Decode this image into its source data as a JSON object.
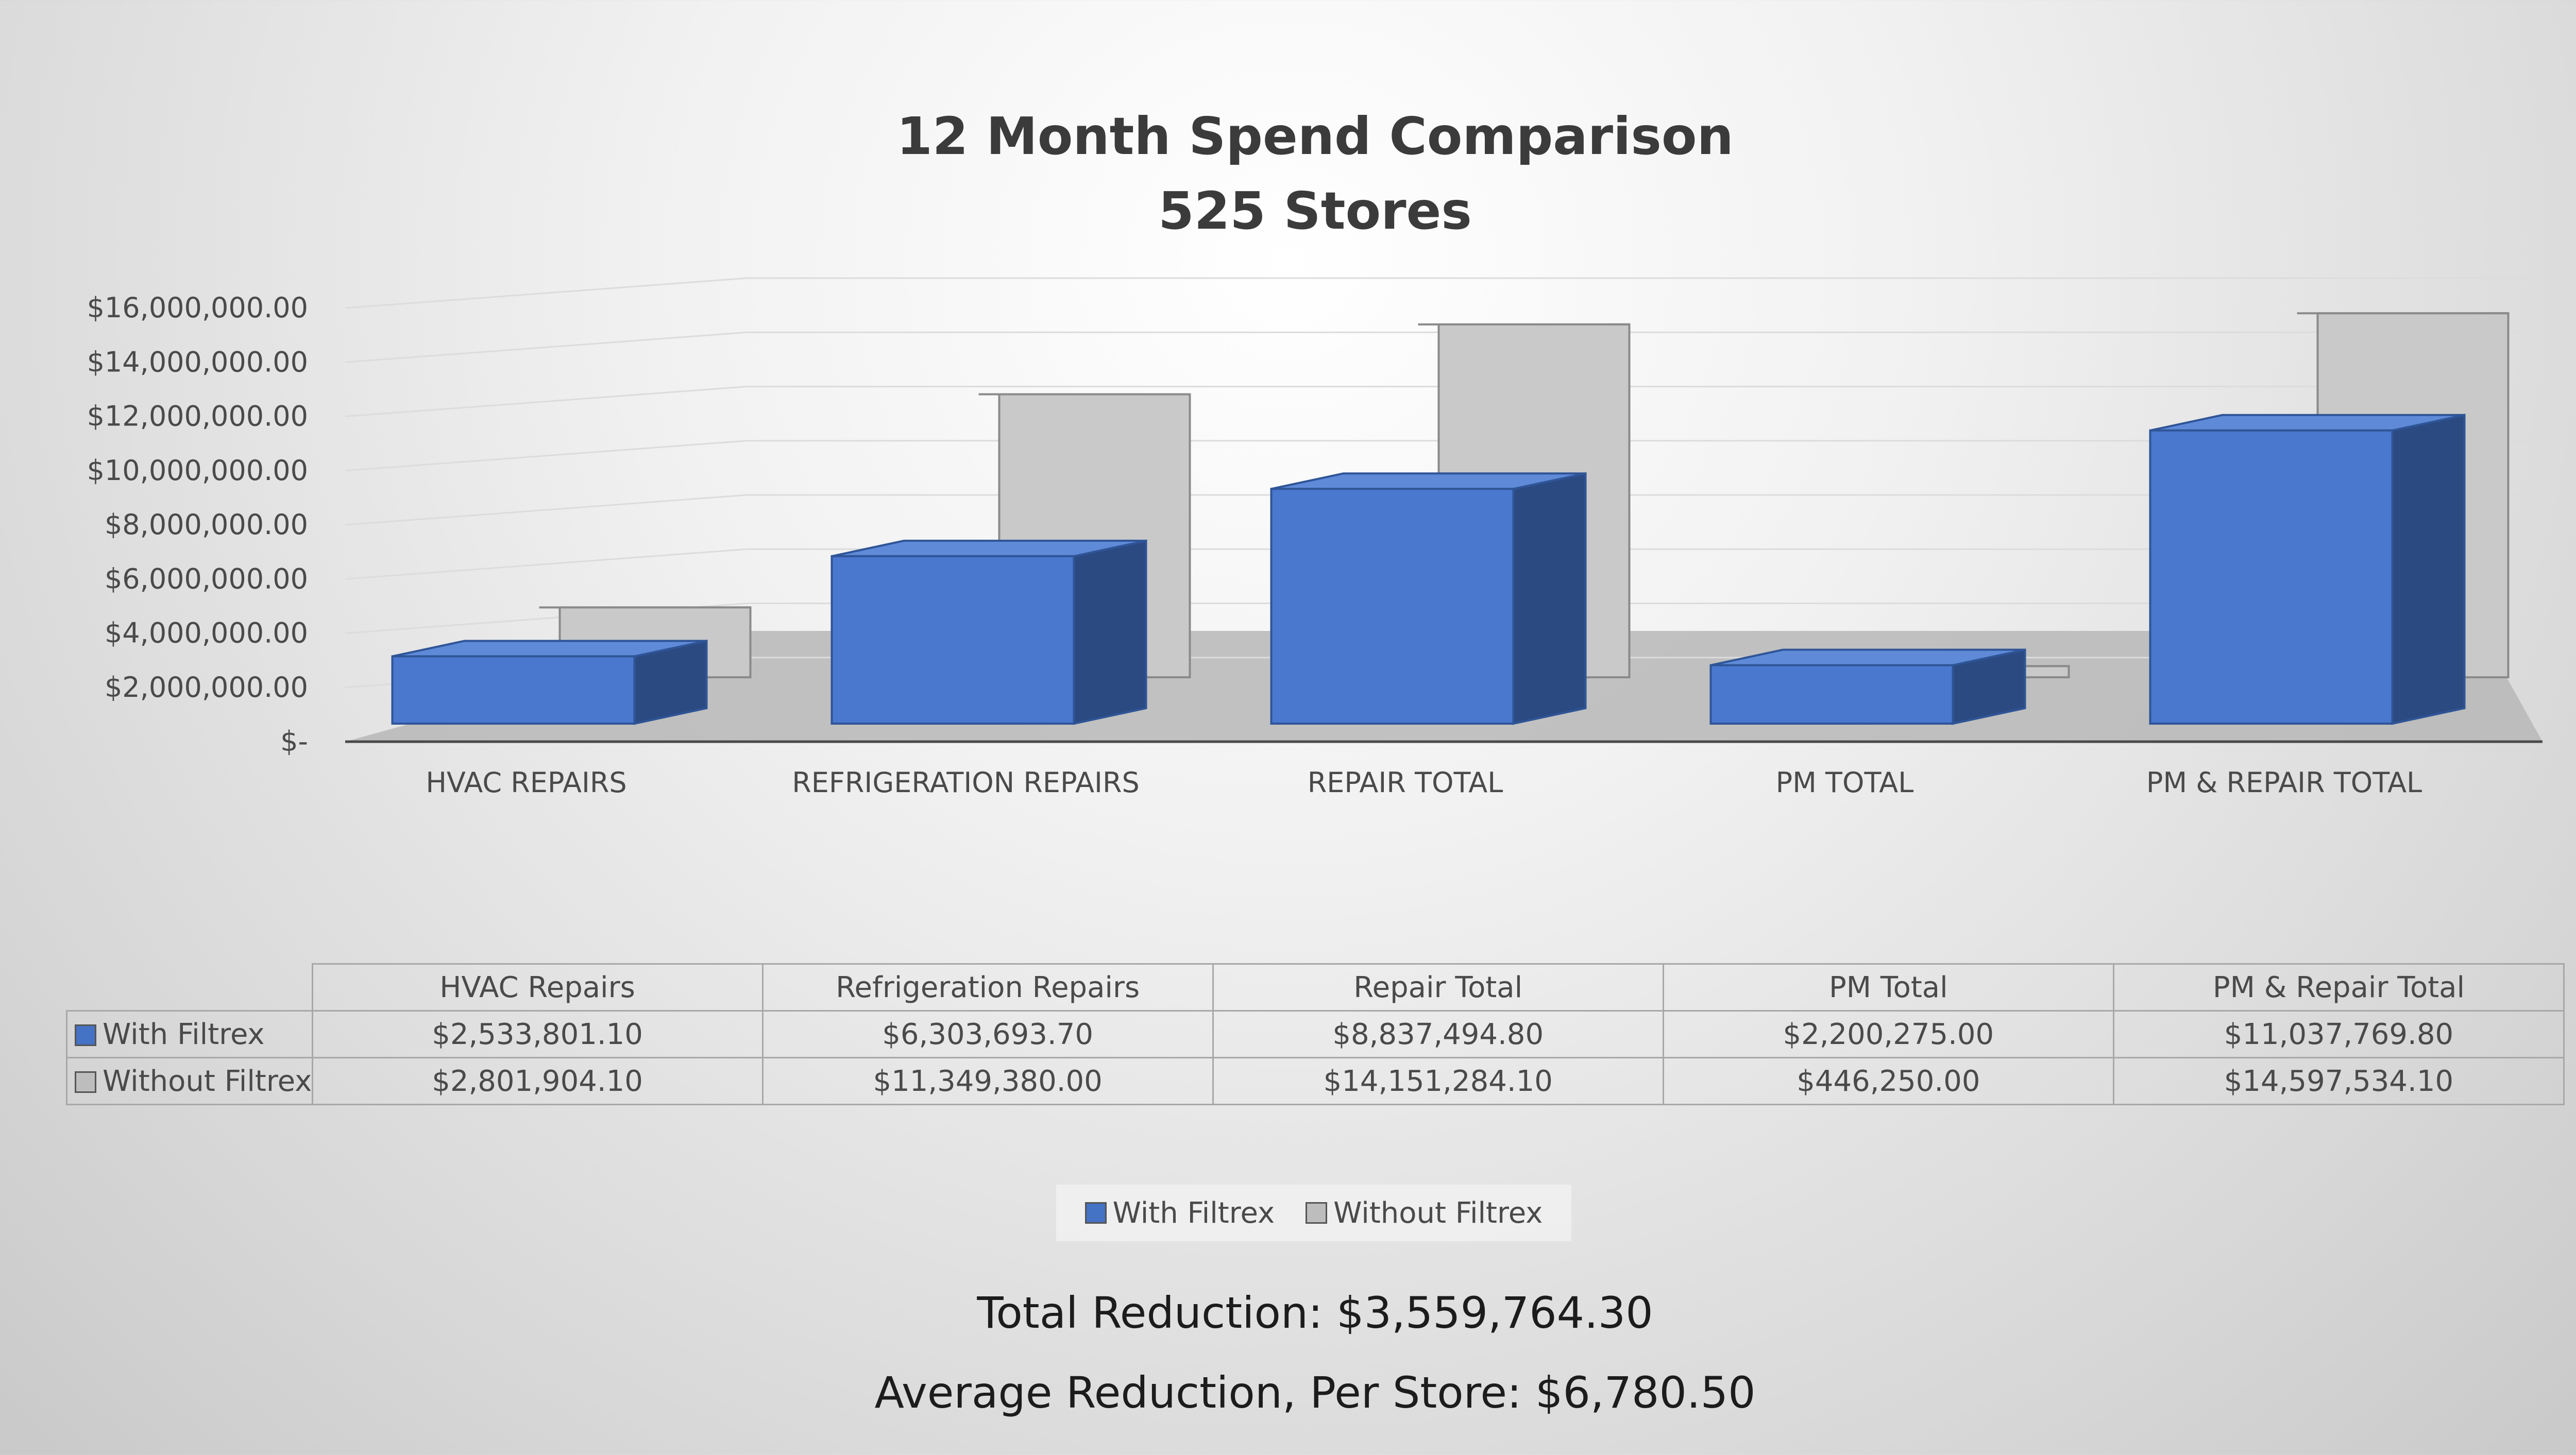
{
  "chart_data": {
    "type": "bar",
    "title": "12 Month Spend Comparison",
    "subtitle": "525 Stores",
    "categories": [
      "HVAC REPAIRS",
      "REFRIGERATION REPAIRS",
      "REPAIR TOTAL",
      "PM TOTAL",
      "PM & REPAIR TOTAL"
    ],
    "series": [
      {
        "name": "With Filtrex",
        "values": [
          2533801.1,
          6303693.7,
          8837494.8,
          2200275.0,
          11037769.8
        ]
      },
      {
        "name": "Without Filtrex",
        "values": [
          2801904.1,
          11349380.0,
          14151284.1,
          446250.0,
          14597534.1
        ]
      }
    ],
    "ylim": [
      0,
      16000000
    ],
    "yticks": [
      "$-",
      "$2,000,000.00",
      "$4,000,000.00",
      "$6,000,000.00",
      "$8,000,000.00",
      "$10,000,000.00",
      "$12,000,000.00",
      "$14,000,000.00",
      "$16,000,000.00"
    ],
    "grid": true,
    "legend": "bottom",
    "style": "3d-clustered-column"
  },
  "colors": {
    "with_filtrex": "#4472c4",
    "without_filtrex": "#bdbdbd"
  },
  "table": {
    "headers": [
      "HVAC Repairs",
      "Refrigeration Repairs",
      "Repair Total",
      "PM Total",
      "PM & Repair Total"
    ],
    "rows": [
      {
        "label": "With Filtrex",
        "cells": [
          "$2,533,801.10",
          "$6,303,693.70",
          "$8,837,494.80",
          "$2,200,275.00",
          "$11,037,769.80"
        ]
      },
      {
        "label": "Without Filtrex",
        "cells": [
          "$2,801,904.10",
          "$11,349,380.00",
          "$14,151,284.10",
          "$446,250.00",
          "$14,597,534.10"
        ]
      }
    ]
  },
  "legend": {
    "with": "With Filtrex",
    "without": "Without Filtrex"
  },
  "summary": {
    "total": "Total Reduction: $3,559,764.30",
    "average": "Average Reduction, Per Store: $6,780.50"
  }
}
